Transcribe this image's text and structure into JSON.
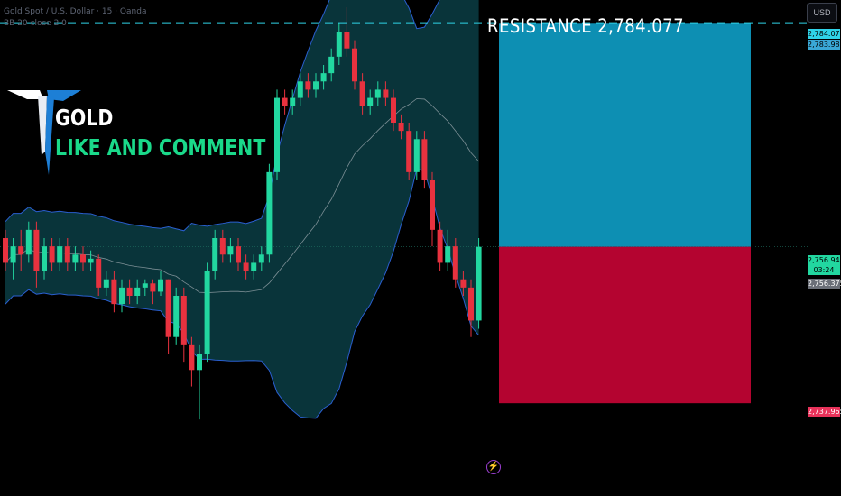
{
  "header": {
    "line1": "Gold Spot / U.S. Dollar · 15 · Oanda",
    "line2": "BB 20 close 2 0"
  },
  "usd_label": "USD",
  "resistance_title": "RESISTANCE   2,784.077",
  "logo": {
    "symbol": "GOLD",
    "caption": "LIKE AND COMMENT"
  },
  "price_tags": {
    "resistance": "2,784.077",
    "upper_box": "2,783.989",
    "last_price": "2,756.940",
    "countdown": "03:24",
    "gray": "2,756.375",
    "lower_box": "2,737.965"
  },
  "colors": {
    "bull": "#22d7a0",
    "bear": "#e8323f",
    "band_fill": "#09343a",
    "band_line": "#2a5fd0",
    "target": "#0d8fb3",
    "stop": "#b40430",
    "resistance_line": "#2fd3e8"
  },
  "chart_data": {
    "type": "candlestick",
    "resistance": 2784.077,
    "entry": 2756.94,
    "target": 2784.0,
    "stop": 2737.965,
    "ylim": [
      2730,
      2786
    ],
    "candles": [
      [
        2758,
        2755,
        2759,
        2754
      ],
      [
        2755,
        2757,
        2758,
        2753
      ],
      [
        2757,
        2756,
        2759,
        2754
      ],
      [
        2756,
        2759,
        2760,
        2755
      ],
      [
        2759,
        2754,
        2760,
        2752
      ],
      [
        2754,
        2757,
        2758,
        2753
      ],
      [
        2757,
        2755,
        2758,
        2754
      ],
      [
        2755,
        2757,
        2758,
        2754
      ],
      [
        2757,
        2755,
        2758,
        2754
      ],
      [
        2755,
        2756,
        2757,
        2754
      ],
      [
        2756,
        2755,
        2757,
        2754
      ],
      [
        2755,
        2755.5,
        2756.5,
        2754
      ],
      [
        2755.5,
        2752,
        2756,
        2751
      ],
      [
        2752,
        2753,
        2754,
        2751
      ],
      [
        2753,
        2750,
        2754,
        2749
      ],
      [
        2750,
        2752,
        2753,
        2749
      ],
      [
        2752,
        2751,
        2753,
        2750
      ],
      [
        2751,
        2752,
        2753,
        2750
      ],
      [
        2752,
        2752.5,
        2753,
        2751
      ],
      [
        2752.5,
        2751.5,
        2753,
        2750
      ],
      [
        2751.5,
        2753,
        2754,
        2751
      ],
      [
        2753,
        2746,
        2753,
        2744
      ],
      [
        2746,
        2751,
        2752,
        2745
      ],
      [
        2751,
        2745,
        2752,
        2743
      ],
      [
        2745,
        2742,
        2746,
        2740
      ],
      [
        2742,
        2744,
        2745,
        2736
      ],
      [
        2744,
        2754,
        2755,
        2743
      ],
      [
        2754,
        2758,
        2759,
        2753
      ],
      [
        2758,
        2756,
        2759,
        2755
      ],
      [
        2756,
        2757,
        2758,
        2755
      ],
      [
        2757,
        2755,
        2758,
        2754
      ],
      [
        2755,
        2754,
        2756,
        2753
      ],
      [
        2754,
        2755,
        2756,
        2753
      ],
      [
        2755,
        2756,
        2757,
        2754
      ],
      [
        2756,
        2766,
        2767,
        2755
      ],
      [
        2766,
        2775,
        2776,
        2765
      ],
      [
        2775,
        2774,
        2776,
        2773
      ],
      [
        2774,
        2775,
        2776,
        2773
      ],
      [
        2775,
        2777,
        2778,
        2774
      ],
      [
        2777,
        2776,
        2778,
        2775
      ],
      [
        2776,
        2777,
        2778,
        2775
      ],
      [
        2777,
        2778,
        2779,
        2776
      ],
      [
        2778,
        2780,
        2781,
        2777
      ],
      [
        2780,
        2783,
        2784,
        2779
      ],
      [
        2783,
        2781,
        2786,
        2780
      ],
      [
        2781,
        2777,
        2782,
        2776
      ],
      [
        2777,
        2774,
        2778,
        2773
      ],
      [
        2774,
        2775,
        2776,
        2773
      ],
      [
        2775,
        2776,
        2777,
        2774
      ],
      [
        2776,
        2775,
        2777,
        2774
      ],
      [
        2775,
        2772,
        2776,
        2771
      ],
      [
        2772,
        2771,
        2773,
        2770
      ],
      [
        2771,
        2766,
        2772,
        2765
      ],
      [
        2766,
        2770,
        2771,
        2765
      ],
      [
        2770,
        2765,
        2771,
        2764
      ],
      [
        2765,
        2759,
        2766,
        2757
      ],
      [
        2759,
        2755,
        2760,
        2754
      ],
      [
        2755,
        2757,
        2759,
        2754
      ],
      [
        2757,
        2753,
        2758,
        2752
      ],
      [
        2753,
        2752,
        2754,
        2751
      ],
      [
        2752,
        2748,
        2753,
        2746
      ],
      [
        2748,
        2756.94,
        2758,
        2747
      ]
    ],
    "date_labels": [
      "",
      "",
      "",
      "",
      "",
      "",
      "",
      "",
      "",
      "",
      "",
      "",
      "",
      ""
    ],
    "x_labels": [],
    "y_labels": []
  }
}
